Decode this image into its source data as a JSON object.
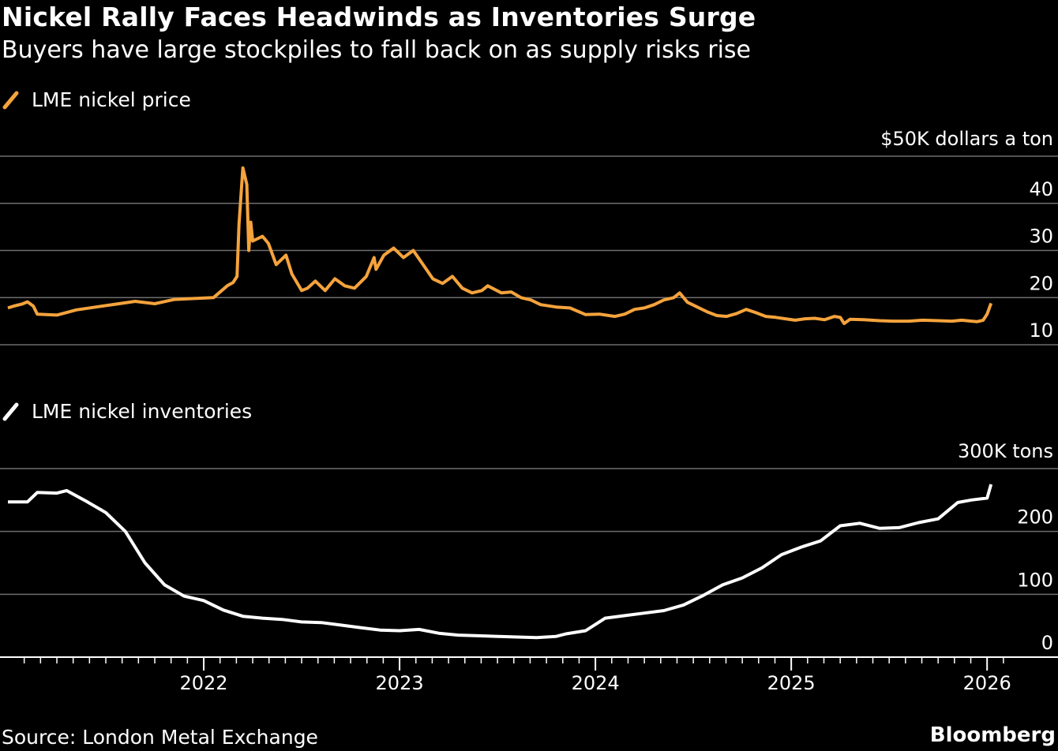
{
  "header": {
    "title": "Nickel Rally Faces Headwinds as Inventories Surge",
    "subtitle": "Buyers have large stockpiles to fall back on as supply risks rise"
  },
  "footer": {
    "source": "Source: London Metal Exchange",
    "brand": "Bloomberg"
  },
  "colors": {
    "background": "#000000",
    "price_line": "#f5a33c",
    "inventory_line": "#ffffff",
    "gridline": "#6e6e6e"
  },
  "chart_data": [
    {
      "type": "line",
      "title": "LME nickel price",
      "legend": "LME nickel price",
      "unit_label": "$50K dollars a ton",
      "ylim": [
        10,
        50
      ],
      "yticks": [
        10,
        20,
        30,
        40
      ],
      "ytick_labels": [
        "10",
        "20",
        "30",
        "40"
      ],
      "xlim": [
        2021.0,
        2026.1
      ],
      "xticks": [
        2022,
        2023,
        2024,
        2025,
        2026
      ],
      "xtick_labels": [
        "2022",
        "2023",
        "2024",
        "2025",
        "2026"
      ],
      "series": [
        {
          "name": "LME nickel price",
          "x": [
            2021.0,
            2021.03,
            2021.07,
            2021.1,
            2021.13,
            2021.15,
            2021.25,
            2021.35,
            2021.45,
            2021.55,
            2021.65,
            2021.75,
            2021.85,
            2021.95,
            2022.05,
            2022.12,
            2022.15,
            2022.17,
            2022.18,
            2022.2,
            2022.22,
            2022.23,
            2022.24,
            2022.25,
            2022.3,
            2022.33,
            2022.37,
            2022.42,
            2022.45,
            2022.5,
            2022.53,
            2022.57,
            2022.62,
            2022.67,
            2022.72,
            2022.77,
            2022.83,
            2022.87,
            2022.88,
            2022.92,
            2022.97,
            2023.02,
            2023.07,
            2023.12,
            2023.17,
            2023.22,
            2023.27,
            2023.32,
            2023.37,
            2023.42,
            2023.45,
            2023.52,
            2023.57,
            2023.62,
            2023.67,
            2023.72,
            2023.8,
            2023.87,
            2023.95,
            2024.02,
            2024.1,
            2024.15,
            2024.2,
            2024.25,
            2024.3,
            2024.35,
            2024.4,
            2024.43,
            2024.47,
            2024.52,
            2024.57,
            2024.62,
            2024.67,
            2024.72,
            2024.77,
            2024.82,
            2024.87,
            2024.92,
            2024.97,
            2025.02,
            2025.07,
            2025.12,
            2025.17,
            2025.22,
            2025.25,
            2025.27,
            2025.3,
            2025.37,
            2025.45,
            2025.52,
            2025.6,
            2025.67,
            2025.75,
            2025.82,
            2025.87,
            2025.92,
            2025.95,
            2025.98,
            2026.0,
            2026.02
          ],
          "values": [
            17.8,
            18.2,
            18.6,
            19.1,
            18.2,
            16.5,
            16.3,
            17.4,
            18.0,
            18.6,
            19.2,
            18.7,
            19.6,
            19.8,
            20.0,
            22.5,
            23.2,
            24.5,
            35.5,
            47.5,
            44.0,
            30.0,
            36.0,
            32.0,
            33.0,
            31.5,
            27.0,
            29.0,
            25.0,
            21.5,
            22.0,
            23.5,
            21.5,
            24.0,
            22.5,
            22.0,
            24.5,
            28.5,
            26.0,
            29.0,
            30.5,
            28.5,
            30.0,
            27.0,
            24.0,
            23.0,
            24.5,
            22.0,
            21.0,
            21.5,
            22.5,
            21.0,
            21.2,
            20.0,
            19.5,
            18.5,
            18.0,
            17.8,
            16.4,
            16.5,
            16.0,
            16.5,
            17.5,
            17.8,
            18.5,
            19.5,
            20.0,
            21.0,
            19.0,
            18.0,
            17.0,
            16.2,
            16.0,
            16.6,
            17.5,
            16.8,
            16.0,
            15.8,
            15.5,
            15.2,
            15.5,
            15.6,
            15.3,
            16.0,
            15.8,
            14.5,
            15.4,
            15.3,
            15.1,
            15.0,
            15.0,
            15.2,
            15.1,
            15.0,
            15.2,
            15.0,
            14.9,
            15.2,
            16.5,
            18.8
          ]
        }
      ]
    },
    {
      "type": "line",
      "title": "LME nickel inventories",
      "legend": "LME nickel inventories",
      "unit_label": "300K tons",
      "ylim": [
        0,
        300
      ],
      "yticks": [
        0,
        100,
        200
      ],
      "ytick_labels": [
        "0",
        "100",
        "200"
      ],
      "xlim": [
        2021.0,
        2026.1
      ],
      "xticks": [
        2022,
        2023,
        2024,
        2025,
        2026
      ],
      "xtick_labels": [
        "2022",
        "2023",
        "2024",
        "2025",
        "2026"
      ],
      "series": [
        {
          "name": "LME nickel inventories",
          "x": [
            2021.0,
            2021.1,
            2021.15,
            2021.25,
            2021.3,
            2021.4,
            2021.5,
            2021.6,
            2021.7,
            2021.8,
            2021.9,
            2022.0,
            2022.1,
            2022.2,
            2022.3,
            2022.4,
            2022.5,
            2022.6,
            2022.7,
            2022.8,
            2022.9,
            2023.0,
            2023.1,
            2023.2,
            2023.3,
            2023.4,
            2023.5,
            2023.6,
            2023.7,
            2023.8,
            2023.85,
            2023.95,
            2024.05,
            2024.15,
            2024.25,
            2024.35,
            2024.45,
            2024.55,
            2024.65,
            2024.75,
            2024.85,
            2024.95,
            2025.05,
            2025.15,
            2025.25,
            2025.35,
            2025.45,
            2025.55,
            2025.65,
            2025.75,
            2025.85,
            2025.92,
            2026.0,
            2026.02
          ],
          "values": [
            247,
            247,
            262,
            261,
            265,
            248,
            230,
            200,
            150,
            115,
            97,
            90,
            75,
            65,
            62,
            60,
            56,
            55,
            51,
            47,
            43,
            42,
            44,
            38,
            35,
            34,
            33,
            32,
            31,
            33,
            37,
            42,
            62,
            66,
            70,
            74,
            83,
            98,
            115,
            126,
            142,
            163,
            175,
            185,
            209,
            213,
            205,
            206,
            214,
            220,
            246,
            250,
            253,
            275
          ]
        }
      ]
    }
  ]
}
